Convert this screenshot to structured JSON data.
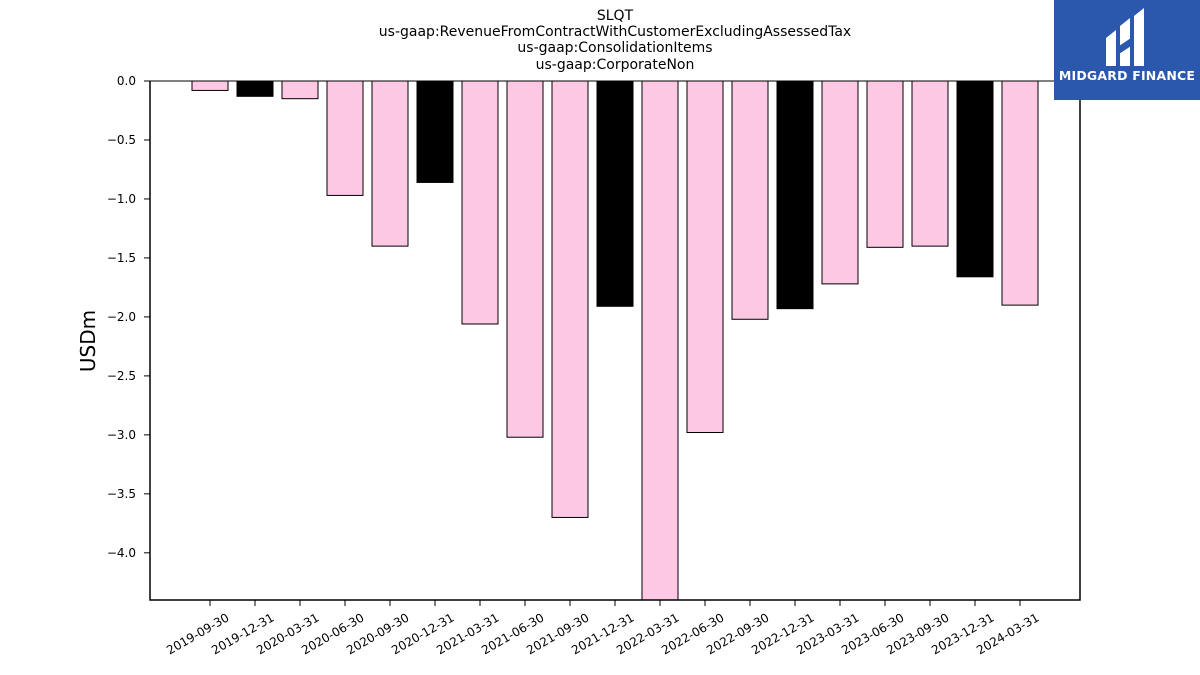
{
  "chart_data": {
    "type": "bar",
    "title_lines": [
      "SLQT",
      "us-gaap:RevenueFromContractWithCustomerExcludingAssessedTax",
      "us-gaap:ConsolidationItems",
      "us-gaap:CorporateNon"
    ],
    "xlabel": "",
    "ylabel": "USDm",
    "ylim": [
      -4.4,
      0.0
    ],
    "yticks": [
      "0.0",
      "−0.5",
      "−1.0",
      "−1.5",
      "−2.0",
      "−2.5",
      "−3.0",
      "−3.5",
      "−4.0"
    ],
    "ytick_values": [
      0.0,
      -0.5,
      -1.0,
      -1.5,
      -2.0,
      -2.5,
      -3.0,
      -3.5,
      -4.0
    ],
    "grid": false,
    "categories": [
      "2019-09-30",
      "2019-12-31",
      "2020-03-31",
      "2020-06-30",
      "2020-09-30",
      "2020-12-31",
      "2021-03-31",
      "2021-06-30",
      "2021-09-30",
      "2021-12-31",
      "2022-03-31",
      "2022-06-30",
      "2022-09-30",
      "2022-12-31",
      "2023-03-31",
      "2023-06-30",
      "2023-09-30",
      "2023-12-31",
      "2024-03-31"
    ],
    "values": [
      -0.08,
      -0.13,
      -0.15,
      -0.97,
      -1.4,
      -0.86,
      -2.06,
      -3.02,
      -3.7,
      -1.91,
      -4.4,
      -2.98,
      -2.02,
      -1.93,
      -1.72,
      -1.41,
      -1.4,
      -1.66,
      -1.9
    ],
    "bar_colors": [
      "#fcc8e4",
      "#000000",
      "#fcc8e4",
      "#fcc8e4",
      "#fcc8e4",
      "#000000",
      "#fcc8e4",
      "#fcc8e4",
      "#fcc8e4",
      "#000000",
      "#fcc8e4",
      "#fcc8e4",
      "#fcc8e4",
      "#000000",
      "#fcc8e4",
      "#fcc8e4",
      "#fcc8e4",
      "#000000",
      "#fcc8e4"
    ]
  },
  "logo": {
    "text": "MIDGARD FINANCE",
    "background": "#2b57ac"
  }
}
